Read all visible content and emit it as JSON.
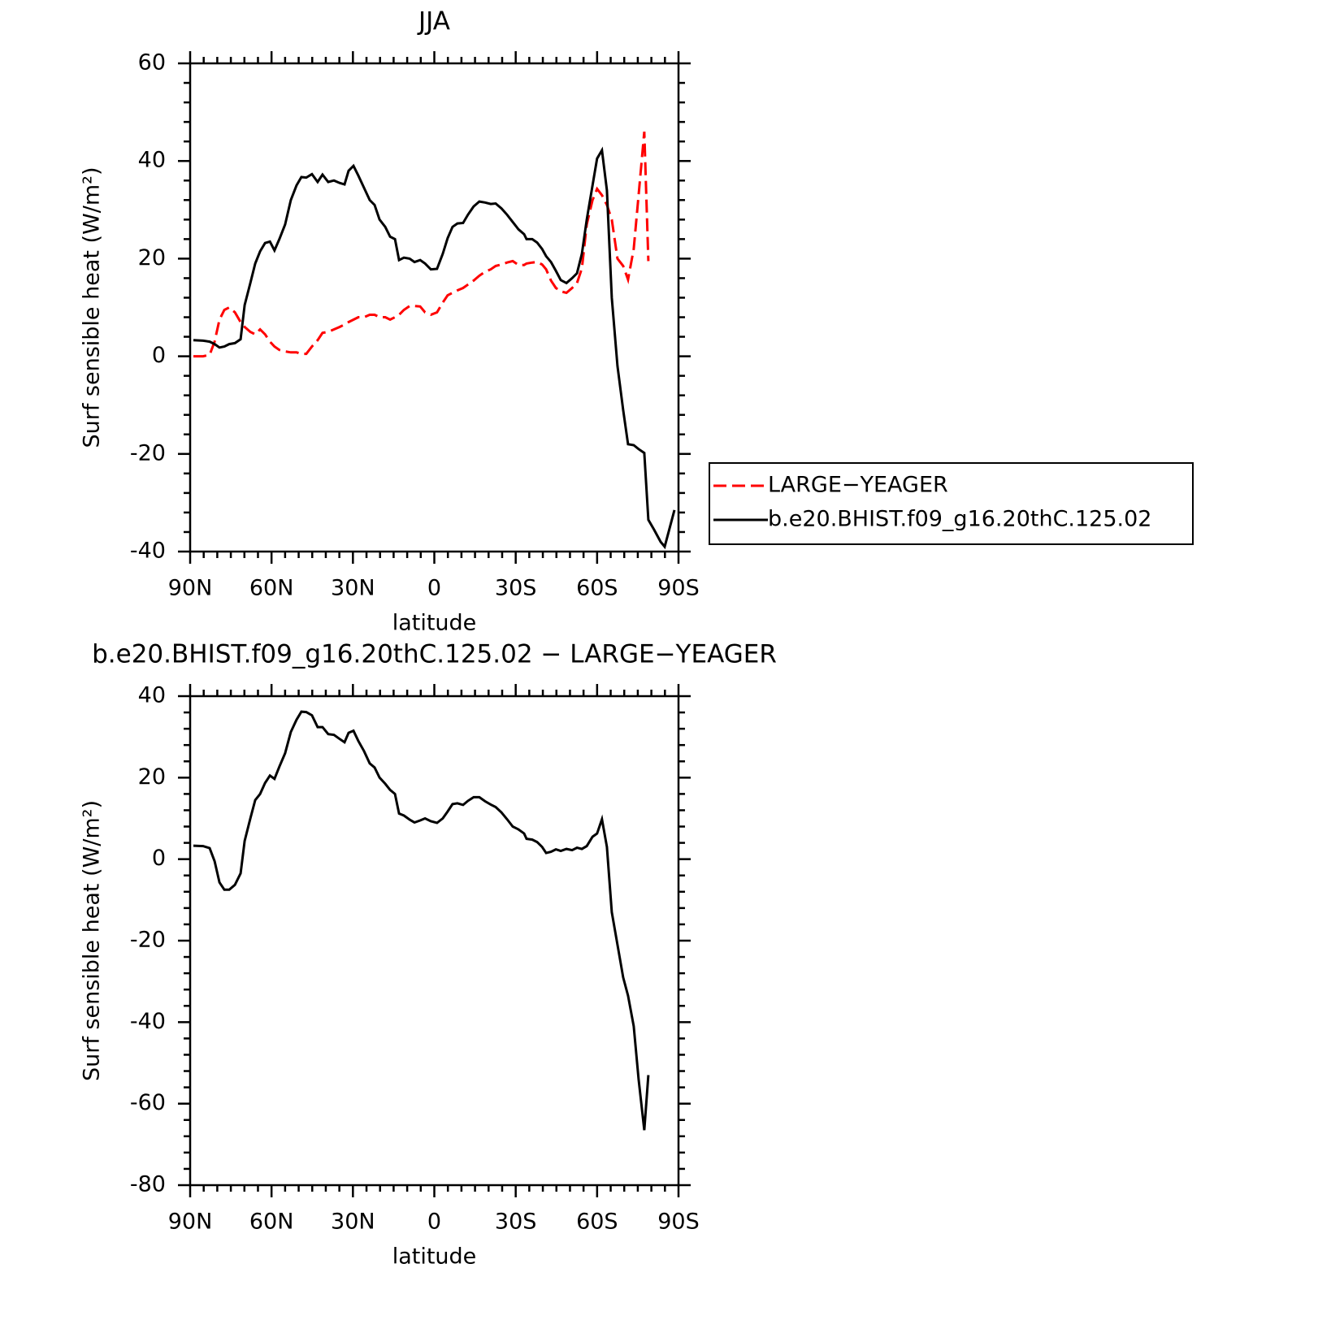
{
  "chart_data": [
    {
      "type": "line",
      "title": "JJA",
      "xlabel": "latitude",
      "ylabel": "Surf sensible heat (W/m²)",
      "x": [
        88.8,
        85.2,
        82.8,
        81.0,
        79.2,
        77.4,
        75.6,
        73.5,
        71.4,
        69.9,
        67.8,
        66.0,
        64.2,
        62.4,
        60.6,
        58.9,
        57.1,
        55.0,
        52.9,
        50.8,
        49.0,
        47.2,
        45.1,
        43.0,
        41.2,
        39.1,
        37.0,
        34.9,
        33.1,
        31.6,
        29.8,
        28.0,
        25.9,
        23.8,
        22.0,
        20.2,
        18.1,
        16.3,
        14.5,
        13.0,
        11.2,
        9.1,
        7.3,
        5.2,
        3.4,
        1.3,
        -1.0,
        -3.1,
        -4.9,
        -6.7,
        -8.5,
        -10.6,
        -12.4,
        -14.5,
        -16.6,
        -18.7,
        -20.8,
        -22.6,
        -24.7,
        -26.8,
        -28.9,
        -31.0,
        -33.1,
        -34.0,
        -36.1,
        -37.9,
        -39.7,
        -41.2,
        -43.0,
        -44.8,
        -46.6,
        -48.7,
        -50.8,
        -52.6,
        -54.4,
        -56.2,
        -58.3,
        -60.0,
        -61.8,
        -63.6,
        -65.4,
        -67.5,
        -69.6,
        -71.4,
        -73.5,
        -75.3,
        -77.4,
        -78.9,
        -81.0,
        -83.4,
        -84.9,
        -88.5
      ],
      "series": [
        {
          "name": "LARGE−YEAGER",
          "color": "#ff0000",
          "dashed": true,
          "values": [
            0,
            0,
            0.3,
            3,
            7.5,
            9.5,
            10,
            9,
            7,
            6,
            5,
            4.5,
            5.5,
            4.5,
            3,
            2,
            1.3,
            1,
            0.8,
            0.8,
            0.5,
            0.5,
            2,
            3.3,
            4.8,
            5,
            5.5,
            6,
            6.5,
            7,
            7.5,
            8,
            8,
            8.5,
            8.5,
            8,
            8,
            7.5,
            8,
            8.5,
            9.5,
            10.3,
            10.3,
            10.2,
            9,
            8.5,
            9,
            11,
            12.5,
            13,
            13.5,
            14,
            14.7,
            15.5,
            16.5,
            17.3,
            17.8,
            18.5,
            18.8,
            19.2,
            19.5,
            18.7,
            18.7,
            19,
            19.2,
            19.3,
            18.8,
            17.8,
            15.5,
            14,
            13.3,
            13,
            14,
            15,
            18,
            27,
            32,
            34.3,
            33,
            31,
            28,
            20,
            18.5,
            15.7,
            22,
            33,
            46,
            19.5,
            null,
            null,
            null,
            null
          ]
        },
        {
          "name": "b.e20.BHIST.f09_g16.20thC.125.02",
          "color": "#000000",
          "dashed": false,
          "values": [
            3.3,
            3.2,
            3.0,
            2.5,
            1.8,
            2.0,
            2.5,
            2.7,
            3.5,
            10.5,
            15,
            19,
            21.5,
            23.2,
            23.5,
            21.7,
            24,
            27,
            32,
            35,
            36.7,
            36.6,
            37.3,
            35.7,
            37.2,
            35.7,
            36,
            35.5,
            35.2,
            38,
            39,
            37,
            34.5,
            32,
            31,
            28,
            26.5,
            24.5,
            24,
            19.7,
            20.2,
            20,
            19.3,
            19.7,
            19,
            17.8,
            17.9,
            21,
            24.2,
            26.5,
            27.2,
            27.3,
            29,
            30.7,
            31.7,
            31.5,
            31.2,
            31.3,
            30.3,
            29,
            27.5,
            26,
            25,
            24,
            24,
            23.3,
            22,
            20.5,
            19.3,
            17.5,
            15.6,
            15,
            16,
            17,
            21,
            28,
            35,
            40.5,
            42.2,
            34,
            12,
            -2,
            -11,
            -18,
            -18.2,
            -19,
            -19.8,
            -33.5,
            -35.5,
            -38,
            -39,
            -31.5
          ]
        }
      ],
      "xlim": [
        90,
        -90
      ],
      "ylim": [
        -40,
        60
      ],
      "xticks": [
        {
          "value": 90,
          "label": "90N"
        },
        {
          "value": 60,
          "label": "60N"
        },
        {
          "value": 30,
          "label": "30N"
        },
        0,
        {
          "value": -30,
          "label": "30S"
        },
        {
          "value": -60,
          "label": "60S"
        },
        {
          "value": -90,
          "label": "90S"
        }
      ],
      "yticks": [
        -40,
        -20,
        0,
        20,
        40,
        60
      ],
      "legend": "right"
    },
    {
      "type": "line",
      "title": "b.e20.BHIST.f09_g16.20thC.125.02 − LARGE−YEAGER",
      "xlabel": "latitude",
      "ylabel": "Surf sensible heat (W/m²)",
      "x": [
        88.8,
        85.2,
        82.8,
        81.0,
        79.2,
        77.4,
        75.6,
        73.5,
        71.4,
        69.9,
        67.8,
        66.0,
        64.2,
        62.4,
        60.6,
        58.9,
        57.1,
        55.0,
        52.9,
        50.8,
        49.0,
        47.2,
        45.1,
        43.0,
        41.2,
        39.1,
        37.0,
        34.9,
        33.1,
        31.6,
        29.8,
        28.0,
        25.9,
        23.8,
        22.0,
        20.2,
        18.1,
        16.3,
        14.5,
        13.0,
        11.2,
        9.1,
        7.3,
        5.2,
        3.4,
        1.3,
        -1.0,
        -3.1,
        -4.9,
        -6.7,
        -8.5,
        -10.6,
        -12.4,
        -14.5,
        -16.6,
        -18.7,
        -20.8,
        -22.6,
        -24.7,
        -26.8,
        -28.9,
        -31.0,
        -33.1,
        -34.0,
        -36.1,
        -37.9,
        -39.7,
        -41.2,
        -43.0,
        -44.8,
        -46.6,
        -48.7,
        -50.8,
        -52.6,
        -54.4,
        -56.2,
        -58.3,
        -60.0,
        -61.8,
        -63.6,
        -65.4,
        -67.5,
        -69.6,
        -71.4,
        -73.5,
        -75.3,
        -77.4,
        -78.9,
        -81.0,
        -83.4,
        -84.9,
        -88.5
      ],
      "series": [
        {
          "color": "#000000",
          "dashed": false,
          "values": [
            3.3,
            3.2,
            2.7,
            -0.5,
            -5.7,
            -7.5,
            -7.5,
            -6.3,
            -3.5,
            4.5,
            10,
            14.5,
            16,
            18.7,
            20.5,
            19.7,
            22.7,
            26,
            31.2,
            34.2,
            36.2,
            36.1,
            35.3,
            32.4,
            32.4,
            30.7,
            30.5,
            29.5,
            28.7,
            31,
            31.5,
            29,
            26.5,
            23.5,
            22.5,
            20,
            18.5,
            17,
            16,
            11.2,
            10.7,
            9.7,
            9,
            9.5,
            10,
            9.3,
            8.9,
            10,
            11.7,
            13.5,
            13.7,
            13.3,
            14.3,
            15.2,
            15.2,
            14.2,
            13.4,
            12.8,
            11.5,
            9.8,
            8,
            7.3,
            6.3,
            5,
            4.8,
            4.2,
            3,
            1.5,
            1.8,
            2.4,
            2,
            2.5,
            2.2,
            2.8,
            2.5,
            3.2,
            5.5,
            6.3,
            9.8,
            3,
            -13,
            -21,
            -29,
            -33.5,
            -41,
            -54,
            -66.5,
            -53,
            null,
            null,
            null,
            null
          ]
        }
      ],
      "xlim": [
        90,
        -90
      ],
      "ylim": [
        -80,
        40
      ],
      "xticks": [
        {
          "value": 90,
          "label": "90N"
        },
        {
          "value": 60,
          "label": "60N"
        },
        {
          "value": 30,
          "label": "30N"
        },
        0,
        {
          "value": -30,
          "label": "30S"
        },
        {
          "value": -60,
          "label": "60S"
        },
        {
          "value": -90,
          "label": "90S"
        }
      ],
      "yticks": [
        -80,
        -60,
        -40,
        -20,
        0,
        20,
        40
      ]
    }
  ]
}
